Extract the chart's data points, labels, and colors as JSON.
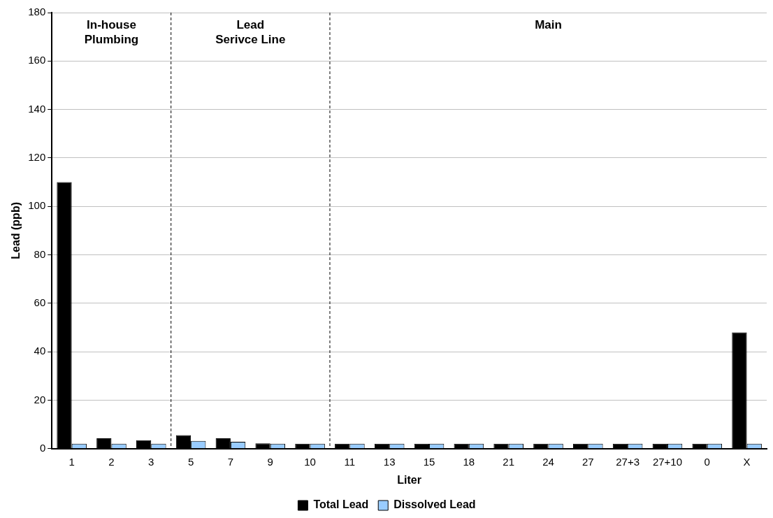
{
  "chart_data": {
    "type": "bar",
    "xlabel": "Liter",
    "ylabel": "Lead (ppb)",
    "categories": [
      "1",
      "2",
      "3",
      "5",
      "7",
      "9",
      "10",
      "11",
      "13",
      "15",
      "18",
      "21",
      "24",
      "27",
      "27+3",
      "27+10",
      "0",
      "X"
    ],
    "series": [
      {
        "name": "Total Lead",
        "color": "#000000",
        "values": [
          110,
          4.3,
          3.5,
          5.6,
          4.3,
          2.2,
          2,
          2,
          2,
          2,
          2,
          2,
          2,
          2,
          2,
          2,
          2,
          48
        ]
      },
      {
        "name": "Dissolved Lead",
        "color": "#99ccff",
        "values": [
          2,
          2,
          2,
          3.2,
          2.8,
          2,
          2,
          2,
          2,
          2,
          2,
          2,
          2,
          2,
          2,
          2,
          2,
          2
        ]
      }
    ],
    "ylim": [
      0,
      180
    ],
    "yticks": [
      0,
      20,
      40,
      60,
      80,
      100,
      120,
      140,
      160,
      180
    ],
    "grid": "y",
    "legend": "bottom",
    "annotations": [
      "In-house\nPlumbing",
      "Lead\nSerivce Line",
      "Main"
    ]
  }
}
